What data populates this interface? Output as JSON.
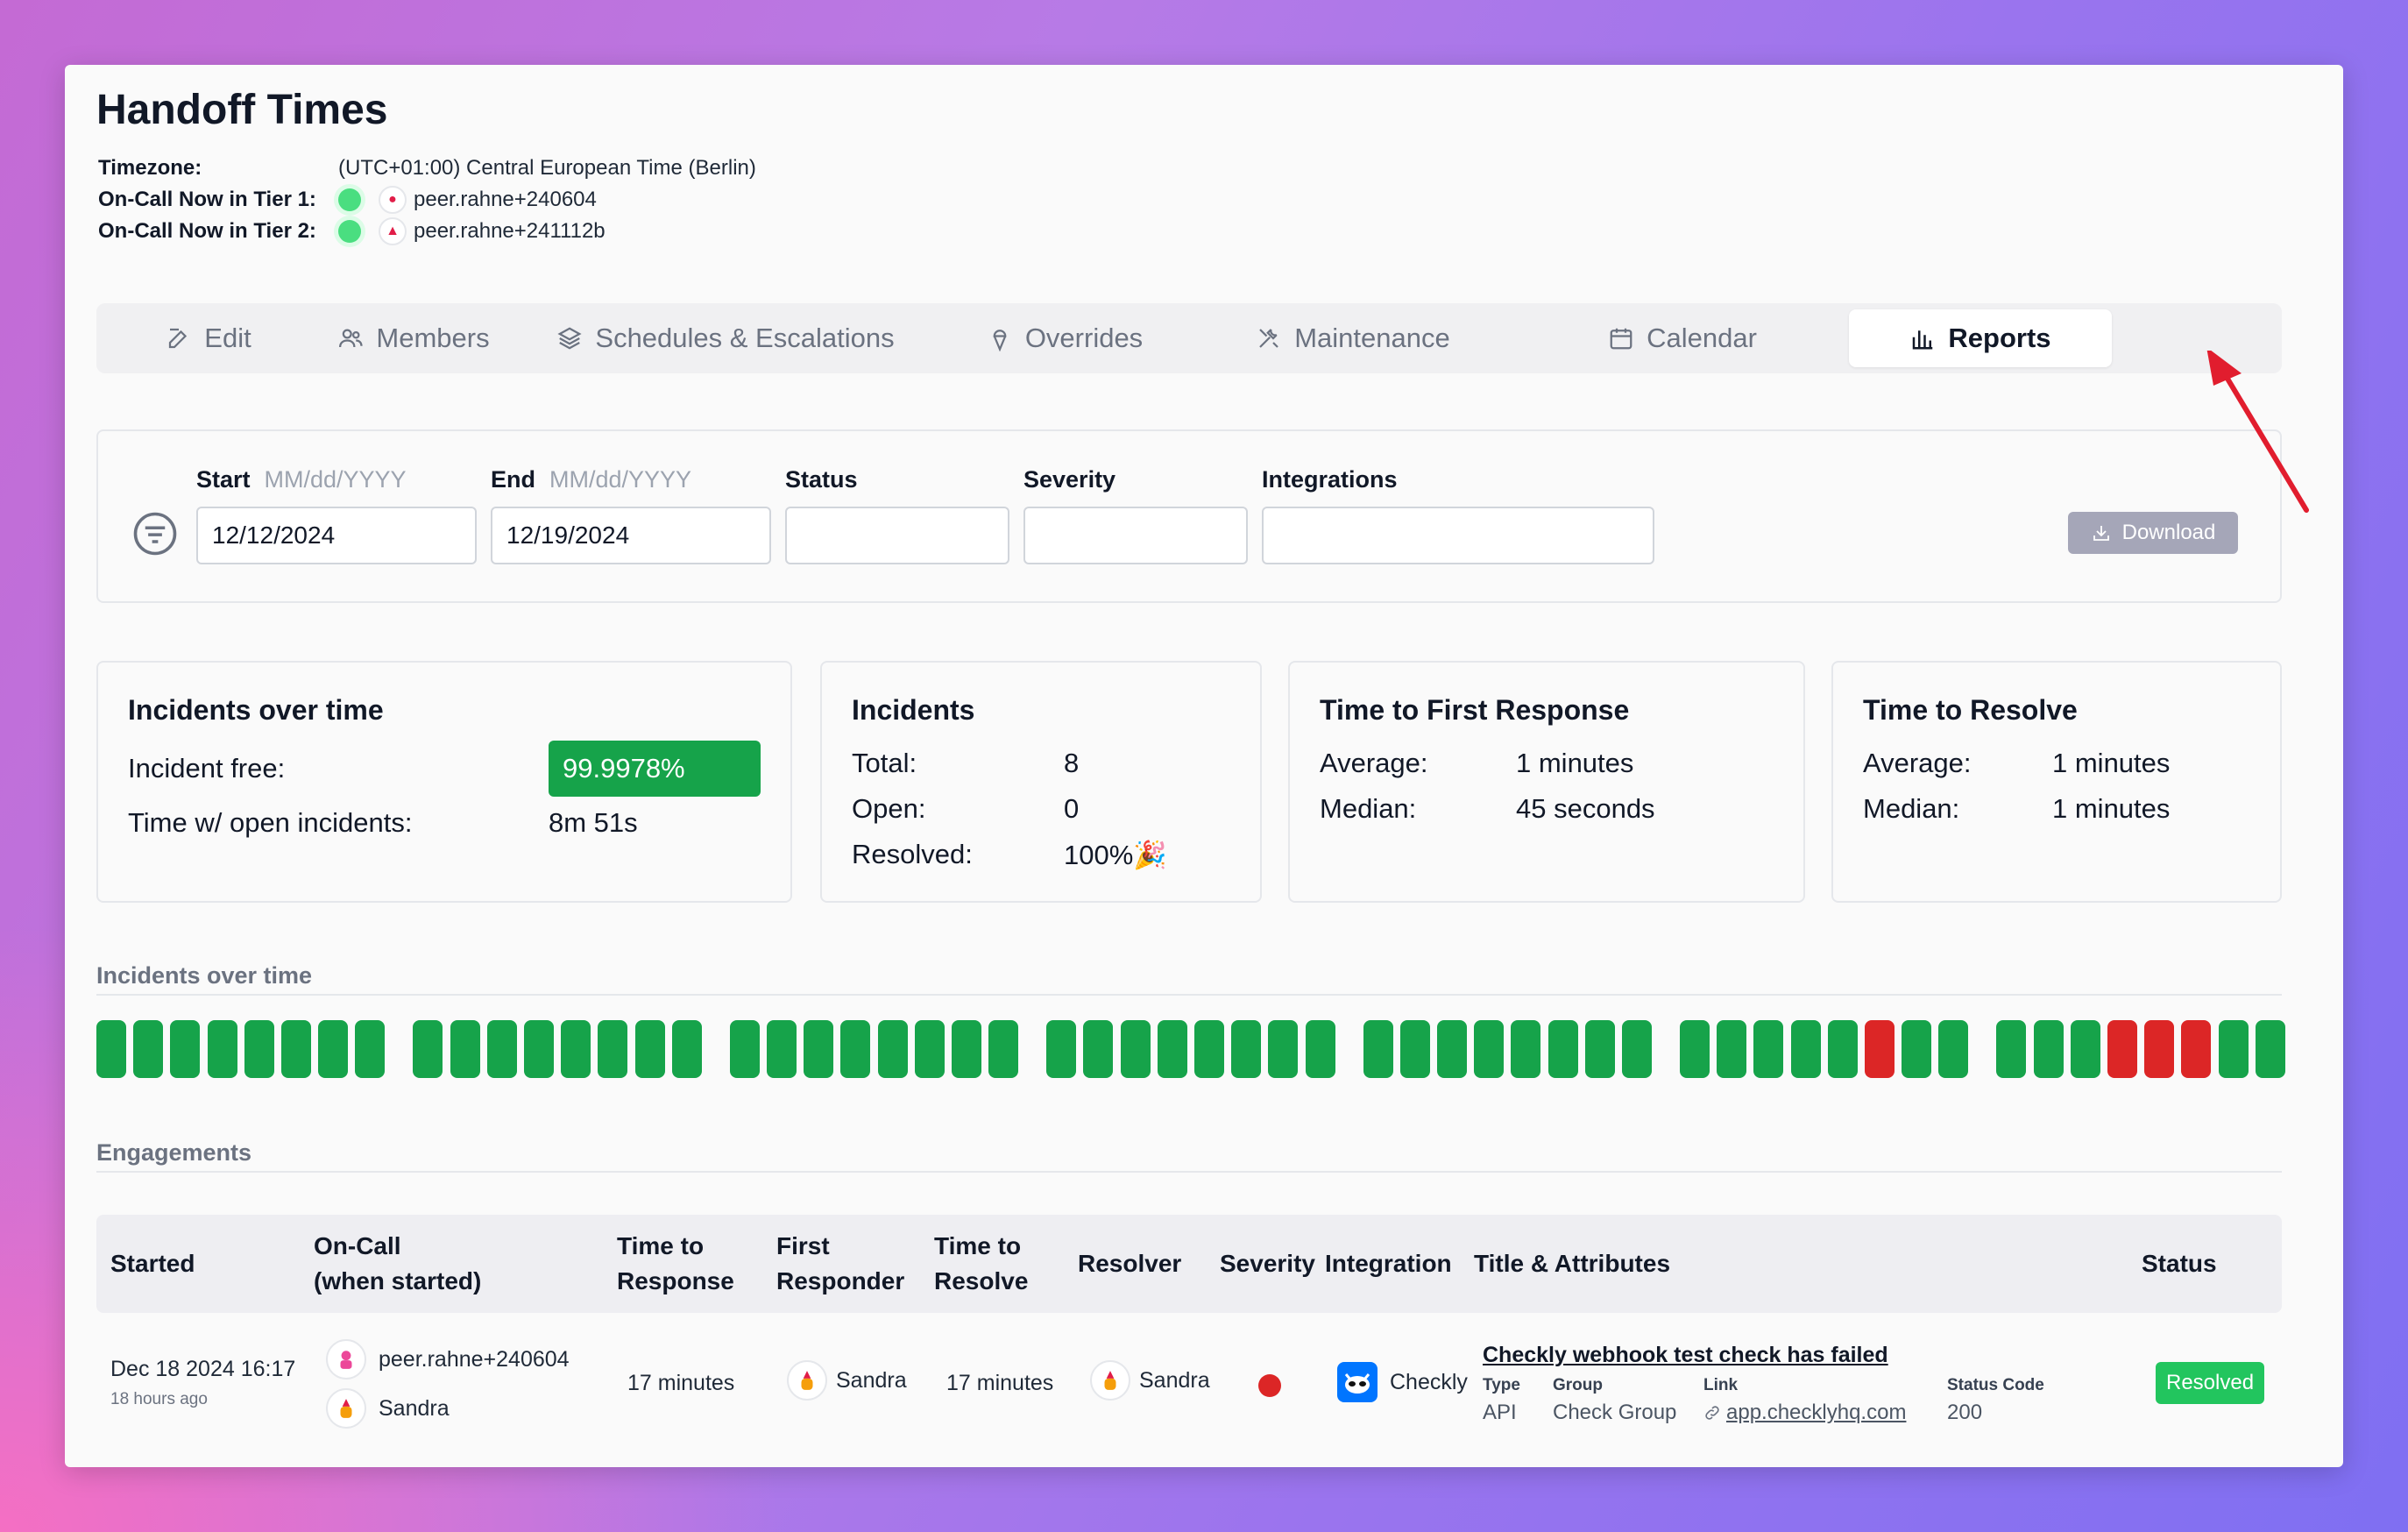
{
  "page": {
    "title": "Handoff Times",
    "timezone_label": "Timezone:",
    "timezone_value": "(UTC+01:00) Central European Time (Berlin)",
    "tier1_label": "On-Call Now in Tier 1:",
    "tier1_user": "peer.rahne+240604",
    "tier2_label": "On-Call Now in Tier 2:",
    "tier2_user": "peer.rahne+241112b"
  },
  "tabs": [
    {
      "label": "Edit",
      "icon": "edit-icon"
    },
    {
      "label": "Members",
      "icon": "members-icon"
    },
    {
      "label": "Schedules & Escalations",
      "icon": "layers-icon"
    },
    {
      "label": "Overrides",
      "icon": "ice-cream-icon"
    },
    {
      "label": "Maintenance",
      "icon": "tools-icon"
    },
    {
      "label": "Calendar",
      "icon": "calendar-icon"
    },
    {
      "label": "Reports",
      "icon": "bar-chart-icon",
      "active": true
    }
  ],
  "filters": {
    "start_label": "Start",
    "start_hint": "MM/dd/YYYY",
    "start_value": "12/12/2024",
    "end_label": "End",
    "end_hint": "MM/dd/YYYY",
    "end_value": "12/19/2024",
    "status_label": "Status",
    "severity_label": "Severity",
    "integrations_label": "Integrations",
    "download_label": "Download"
  },
  "stats": {
    "over_time": {
      "title": "Incidents over time",
      "free_label": "Incident free:",
      "free_value": "99.9978%",
      "open_label": "Time w/ open incidents:",
      "open_value": "8m 51s"
    },
    "incidents": {
      "title": "Incidents",
      "total_label": "Total:",
      "total_value": "8",
      "open_label": "Open:",
      "open_value": "0",
      "resolved_label": "Resolved:",
      "resolved_value": "100%🎉"
    },
    "first_response": {
      "title": "Time to First Response",
      "avg_label": "Average:",
      "avg_value": "1 minutes",
      "median_label": "Median:",
      "median_value": "45 seconds"
    },
    "resolve": {
      "title": "Time to Resolve",
      "avg_label": "Average:",
      "avg_value": "1 minutes",
      "median_label": "Median:",
      "median_value": "1 minutes"
    }
  },
  "timeline": {
    "label": "Incidents over time",
    "colors": {
      "ok": "#16a34a",
      "incident": "#dc2626"
    },
    "days": [
      [
        "ok",
        "ok",
        "ok",
        "ok",
        "ok",
        "ok",
        "ok",
        "ok"
      ],
      [
        "ok",
        "ok",
        "ok",
        "ok",
        "ok",
        "ok",
        "ok",
        "ok"
      ],
      [
        "ok",
        "ok",
        "ok",
        "ok",
        "ok",
        "ok",
        "ok",
        "ok"
      ],
      [
        "ok",
        "ok",
        "ok",
        "ok",
        "ok",
        "ok",
        "ok",
        "ok"
      ],
      [
        "ok",
        "ok",
        "ok",
        "ok",
        "ok",
        "ok",
        "ok",
        "ok"
      ],
      [
        "ok",
        "ok",
        "ok",
        "ok",
        "ok",
        "incident",
        "ok",
        "ok"
      ],
      [
        "ok",
        "ok",
        "ok",
        "incident",
        "incident",
        "incident",
        "ok",
        "ok"
      ]
    ]
  },
  "engagements": {
    "label": "Engagements",
    "headers": {
      "started": "Started",
      "oncall_1": "On-Call",
      "oncall_2": "(when started)",
      "ttr_1": "Time to",
      "ttr_2": "Response",
      "fr_1": "First",
      "fr_2": "Responder",
      "tres_1": "Time to",
      "tres_2": "Resolve",
      "resolver": "Resolver",
      "severity": "Severity",
      "integration": "Integration",
      "title_attrs": "Title & Attributes",
      "status": "Status"
    },
    "row": {
      "started": "Dec 18 2024 16:17",
      "started_ago": "18 hours ago",
      "oncall_1": "peer.rahne+240604",
      "oncall_2": "Sandra",
      "time_to_response": "17 minutes",
      "first_responder": "Sandra",
      "time_to_resolve": "17 minutes",
      "resolver": "Sandra",
      "severity_color": "#dc2626",
      "integration": "Checkly",
      "title": "Checkly webhook test check has failed",
      "type_label": "Type",
      "type_value": "API",
      "group_label": "Group",
      "group_value": "Check Group",
      "link_label": "Link",
      "link_value": "app.checklyhq.com",
      "status_code_label": "Status Code",
      "status_code_value": "200",
      "status": "Resolved"
    }
  }
}
